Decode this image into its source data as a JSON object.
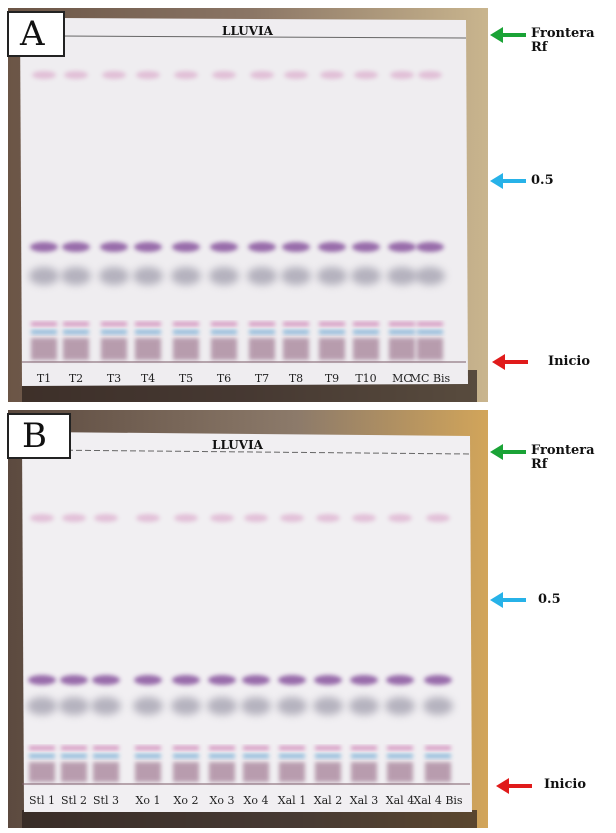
{
  "panels": [
    {
      "label": "A",
      "plate_title": "LLUVIA",
      "lanes": [
        "T1",
        "T2",
        "T3",
        "T4",
        "T5",
        "T6",
        "T7",
        "T8",
        "T9",
        "T10",
        "MC",
        "MC Bis"
      ],
      "annotations": {
        "front": [
          "Frontera",
          "Rf"
        ],
        "half": "0.5",
        "start": "Inicio"
      }
    },
    {
      "label": "B",
      "plate_title": "LLUVIA",
      "lanes": [
        "Stl 1",
        "Stl 2",
        "Stl 3",
        "Xo 1",
        "Xo 2",
        "Xo 3",
        "Xo 4",
        "Xal 1",
        "Xal 2",
        "Xal 3",
        "Xal 4",
        "Xal 4 Bis"
      ],
      "annotations": {
        "front": [
          "Frontera",
          "Rf"
        ],
        "half": "0.5",
        "start": "Inicio"
      }
    }
  ],
  "colors": {
    "front_arrow": "#1aa336",
    "half_arrow": "#27b2e8",
    "start_arrow": "#e01b1b",
    "pink_band": "#c76aa8",
    "purple_band": "#7a3f93",
    "grey_band": "#8d8a9c",
    "blue_band": "#3f8fc8"
  }
}
